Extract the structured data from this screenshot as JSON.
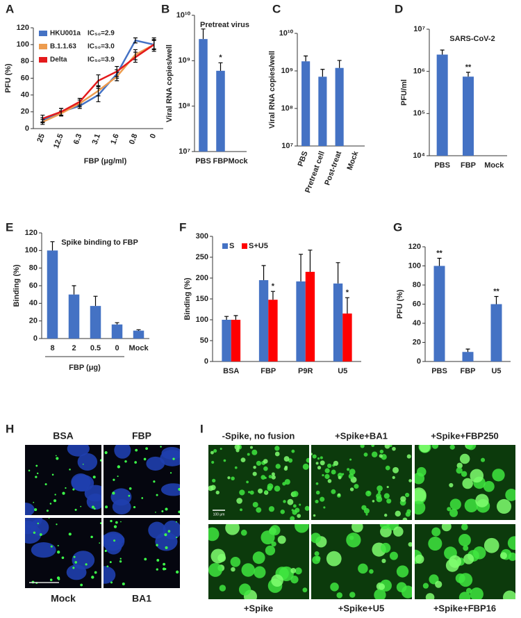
{
  "chart_data": [
    {
      "panel_label": "A",
      "type": "line",
      "y_label": "PFU (%)",
      "x_label": "FBP (μg/ml)",
      "categories": [
        "25",
        "12.5",
        "6.3",
        "3.1",
        "1.6",
        "0.8",
        "0"
      ],
      "ylim": [
        0,
        120
      ],
      "yticks": [
        0,
        20,
        40,
        60,
        80,
        100,
        120
      ],
      "series": [
        {
          "name": "HKU001a",
          "annotation": "IC₅₀=2.9",
          "color": "#4472c4",
          "values": [
            10,
            20,
            27,
            40,
            65,
            105,
            100
          ],
          "errors": [
            3,
            4,
            3,
            8,
            5,
            3,
            8
          ]
        },
        {
          "name": "B.1.1.63",
          "annotation": "IC₅₀=3.0",
          "color": "#ed9c4f",
          "values": [
            8,
            18,
            30,
            45,
            62,
            88,
            100
          ],
          "errors": [
            3,
            3,
            4,
            6,
            5,
            6,
            5
          ]
        },
        {
          "name": "Delta",
          "annotation": "IC₅₀=3.9",
          "color": "#e41a1c",
          "values": [
            12,
            20,
            32,
            57,
            68,
            85,
            100
          ],
          "errors": [
            4,
            4,
            4,
            7,
            6,
            6,
            6
          ]
        }
      ]
    },
    {
      "panel_label": "B",
      "type": "bar",
      "title": "Pretreat virus",
      "y_label": "Viral RNA copies/well",
      "categories": [
        "PBS",
        "FBP",
        "Mock"
      ],
      "log_scale": true,
      "ylim": [
        10000000,
        10000000000
      ],
      "yticks": [
        {
          "value": 10000000,
          "label": "10⁷"
        },
        {
          "value": 100000000,
          "label": "10⁸"
        },
        {
          "value": 1000000000,
          "label": "10⁹"
        },
        {
          "value": 10000000000,
          "label": "10¹⁰"
        }
      ],
      "series": [
        {
          "color": "#4472c4",
          "values": [
            3000000000,
            600000000,
            null
          ],
          "errors": [
            2000000000,
            300000000,
            null
          ],
          "significance": [
            null,
            "*",
            null
          ]
        }
      ]
    },
    {
      "panel_label": "C",
      "type": "bar",
      "y_label": "Viral RNA copies/well",
      "categories": [
        "PBS",
        "Pretreat cell",
        "Post-treat",
        "Mock"
      ],
      "log_scale": true,
      "ylim": [
        10000000,
        10000000000
      ],
      "yticks": [
        {
          "value": 10000000,
          "label": "10⁷"
        },
        {
          "value": 100000000,
          "label": "10⁸"
        },
        {
          "value": 1000000000,
          "label": "10⁹"
        },
        {
          "value": 10000000000,
          "label": "10¹⁰"
        }
      ],
      "series": [
        {
          "color": "#4472c4",
          "values": [
            1800000000,
            700000000,
            1200000000,
            null
          ],
          "errors": [
            700000000,
            400000000,
            700000000,
            null
          ]
        }
      ]
    },
    {
      "panel_label": "D",
      "type": "bar",
      "title": "SARS-CoV-2",
      "y_label": "PFU/ml",
      "categories": [
        "PBS",
        "FBP",
        "Mock"
      ],
      "log_scale": true,
      "ylim": [
        10000,
        10000000
      ],
      "yticks": [
        {
          "value": 10000,
          "label": "10⁴"
        },
        {
          "value": 100000,
          "label": "10⁵"
        },
        {
          "value": 1000000,
          "label": "10⁶"
        },
        {
          "value": 10000000,
          "label": "10⁷"
        }
      ],
      "series": [
        {
          "color": "#4472c4",
          "values": [
            2500000,
            750000,
            null
          ],
          "errors": [
            700000,
            200000,
            null
          ],
          "significance": [
            null,
            "**",
            null
          ]
        }
      ]
    },
    {
      "panel_label": "E",
      "type": "bar",
      "title": "Spike binding to FBP",
      "y_label": "Binding (%)",
      "x_label": "FBP (μg)",
      "categories": [
        "8",
        "2",
        "0.5",
        "0",
        "Mock"
      ],
      "ylim": [
        0,
        120
      ],
      "yticks": [
        0,
        20,
        40,
        60,
        80,
        100,
        120
      ],
      "series": [
        {
          "color": "#4472c4",
          "values": [
            100,
            50,
            37,
            16,
            9
          ],
          "errors": [
            10,
            10,
            11,
            2,
            1
          ]
        }
      ]
    },
    {
      "panel_label": "F",
      "type": "bar",
      "y_label": "Binding (%)",
      "categories": [
        "BSA",
        "FBP",
        "P9R",
        "U5"
      ],
      "ylim": [
        0,
        300
      ],
      "yticks": [
        0,
        50,
        100,
        150,
        200,
        250,
        300
      ],
      "series": [
        {
          "name": "S",
          "color": "#4472c4",
          "values": [
            100,
            195,
            192,
            187
          ],
          "errors": [
            8,
            35,
            65,
            50
          ]
        },
        {
          "name": "S+U5",
          "color": "#ff0000",
          "values": [
            100,
            148,
            215,
            115
          ],
          "errors": [
            10,
            20,
            52,
            38
          ],
          "significance": [
            null,
            "*",
            null,
            "*"
          ]
        }
      ]
    },
    {
      "panel_label": "G",
      "type": "bar",
      "y_label": "PFU (%)",
      "categories": [
        "PBS",
        "FBP",
        "U5"
      ],
      "ylim": [
        0,
        120
      ],
      "yticks": [
        0,
        20,
        40,
        60,
        80,
        100,
        120
      ],
      "series": [
        {
          "color": "#4472c4",
          "values": [
            100,
            10,
            60
          ],
          "errors": [
            8,
            3,
            8
          ],
          "significance": [
            "**",
            null,
            "**"
          ]
        }
      ]
    }
  ],
  "image_panels": {
    "H": {
      "panel_label": "H",
      "labels": [
        "BSA",
        "FBP",
        "Mock",
        "BA1"
      ]
    },
    "I": {
      "panel_label": "I",
      "labels": [
        "-Spike, no fusion",
        "+Spike+BA1",
        "+Spike+FBP250",
        "+Spike",
        "+Spike+U5",
        "+Spike+FBP16"
      ],
      "scale_bar": "100 μm"
    }
  }
}
